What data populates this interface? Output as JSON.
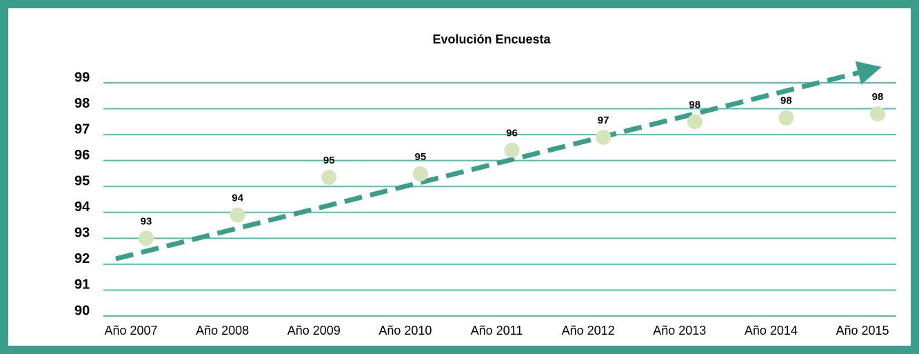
{
  "chart_data": {
    "type": "scatter",
    "title": "Evolución Encuesta",
    "categories": [
      "Año 2007",
      "Año 2008",
      "Año 2009",
      "Año 2010",
      "Año 2011",
      "Año 2012",
      "Año 2013",
      "Año 2014",
      "Año 2015"
    ],
    "values": [
      93.0,
      93.9,
      95.35,
      95.49,
      96.4,
      96.9,
      97.5,
      97.65,
      97.8
    ],
    "value_labels": [
      "93",
      "94",
      "95",
      "95",
      "96",
      "97",
      "98",
      "98",
      "98"
    ],
    "color": "#d5e4bb",
    "grid_color": "#4cc2ad",
    "ylim": [
      90,
      99
    ],
    "yticks": [
      90,
      91,
      92,
      93,
      94,
      95,
      96,
      97,
      98,
      99
    ],
    "grid": true
  }
}
